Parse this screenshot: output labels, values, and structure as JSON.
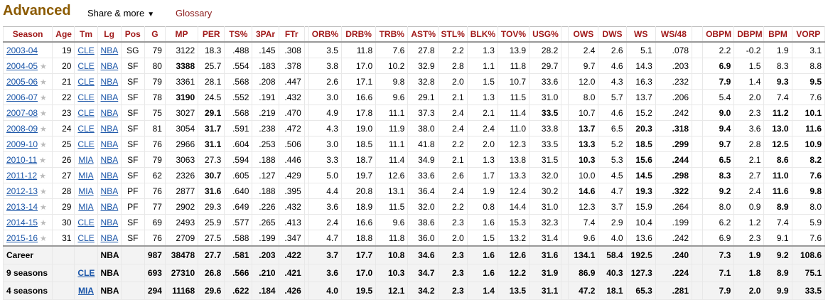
{
  "header": {
    "title": "Advanced",
    "share_label": "Share & more",
    "share_caret": "▼",
    "glossary_label": "Glossary"
  },
  "columns": [
    "Season",
    "Age",
    "Tm",
    "Lg",
    "Pos",
    "G",
    "MP",
    "PER",
    "TS%",
    "3PAr",
    "FTr",
    "",
    "ORB%",
    "DRB%",
    "TRB%",
    "AST%",
    "STL%",
    "BLK%",
    "TOV%",
    "USG%",
    "",
    "OWS",
    "DWS",
    "WS",
    "WS/48",
    "",
    "OBPM",
    "DBPM",
    "BPM",
    "VORP"
  ],
  "rows": [
    {
      "season": "2003-04",
      "star": false,
      "age": "19",
      "tm": "CLE",
      "lg": "NBA",
      "pos": "SG",
      "g": "79",
      "mp": "3122",
      "per": "18.3",
      "ts": ".488",
      "par": ".145",
      "ftr": ".308",
      "orb": "3.5",
      "drb": "11.8",
      "trb": "7.6",
      "ast": "27.8",
      "stl": "2.2",
      "blk": "1.3",
      "tov": "13.9",
      "usg": "28.2",
      "ows": "2.4",
      "dws": "2.6",
      "ws": "5.1",
      "ws48": ".078",
      "obpm": "2.2",
      "dbpm": "-0.2",
      "bpm": "1.9",
      "vorp": "3.1",
      "bold": []
    },
    {
      "season": "2004-05",
      "star": true,
      "age": "20",
      "tm": "CLE",
      "lg": "NBA",
      "pos": "SF",
      "g": "80",
      "mp": "3388",
      "per": "25.7",
      "ts": ".554",
      "par": ".183",
      "ftr": ".378",
      "orb": "3.8",
      "drb": "17.0",
      "trb": "10.2",
      "ast": "32.9",
      "stl": "2.8",
      "blk": "1.1",
      "tov": "11.8",
      "usg": "29.7",
      "ows": "9.7",
      "dws": "4.6",
      "ws": "14.3",
      "ws48": ".203",
      "obpm": "6.9",
      "dbpm": "1.5",
      "bpm": "8.3",
      "vorp": "8.8",
      "bold": [
        "mp",
        "obpm"
      ]
    },
    {
      "season": "2005-06",
      "star": true,
      "age": "21",
      "tm": "CLE",
      "lg": "NBA",
      "pos": "SF",
      "g": "79",
      "mp": "3361",
      "per": "28.1",
      "ts": ".568",
      "par": ".208",
      "ftr": ".447",
      "orb": "2.6",
      "drb": "17.1",
      "trb": "9.8",
      "ast": "32.8",
      "stl": "2.0",
      "blk": "1.5",
      "tov": "10.7",
      "usg": "33.6",
      "ows": "12.0",
      "dws": "4.3",
      "ws": "16.3",
      "ws48": ".232",
      "obpm": "7.9",
      "dbpm": "1.4",
      "bpm": "9.3",
      "vorp": "9.5",
      "bold": [
        "obpm",
        "bpm",
        "vorp"
      ]
    },
    {
      "season": "2006-07",
      "star": true,
      "age": "22",
      "tm": "CLE",
      "lg": "NBA",
      "pos": "SF",
      "g": "78",
      "mp": "3190",
      "per": "24.5",
      "ts": ".552",
      "par": ".191",
      "ftr": ".432",
      "orb": "3.0",
      "drb": "16.6",
      "trb": "9.6",
      "ast": "29.1",
      "stl": "2.1",
      "blk": "1.3",
      "tov": "11.5",
      "usg": "31.0",
      "ows": "8.0",
      "dws": "5.7",
      "ws": "13.7",
      "ws48": ".206",
      "obpm": "5.4",
      "dbpm": "2.0",
      "bpm": "7.4",
      "vorp": "7.6",
      "bold": [
        "mp"
      ]
    },
    {
      "season": "2007-08",
      "star": true,
      "age": "23",
      "tm": "CLE",
      "lg": "NBA",
      "pos": "SF",
      "g": "75",
      "mp": "3027",
      "per": "29.1",
      "ts": ".568",
      "par": ".219",
      "ftr": ".470",
      "orb": "4.9",
      "drb": "17.8",
      "trb": "11.1",
      "ast": "37.3",
      "stl": "2.4",
      "blk": "2.1",
      "tov": "11.4",
      "usg": "33.5",
      "ows": "10.7",
      "dws": "4.6",
      "ws": "15.2",
      "ws48": ".242",
      "obpm": "9.0",
      "dbpm": "2.3",
      "bpm": "11.2",
      "vorp": "10.1",
      "bold": [
        "per",
        "usg",
        "obpm",
        "bpm",
        "vorp"
      ]
    },
    {
      "season": "2008-09",
      "star": true,
      "age": "24",
      "tm": "CLE",
      "lg": "NBA",
      "pos": "SF",
      "g": "81",
      "mp": "3054",
      "per": "31.7",
      "ts": ".591",
      "par": ".238",
      "ftr": ".472",
      "orb": "4.3",
      "drb": "19.0",
      "trb": "11.9",
      "ast": "38.0",
      "stl": "2.4",
      "blk": "2.4",
      "tov": "11.0",
      "usg": "33.8",
      "ows": "13.7",
      "dws": "6.5",
      "ws": "20.3",
      "ws48": ".318",
      "obpm": "9.4",
      "dbpm": "3.6",
      "bpm": "13.0",
      "vorp": "11.6",
      "bold": [
        "per",
        "ows",
        "ws",
        "ws48",
        "obpm",
        "bpm",
        "vorp"
      ]
    },
    {
      "season": "2009-10",
      "star": true,
      "age": "25",
      "tm": "CLE",
      "lg": "NBA",
      "pos": "SF",
      "g": "76",
      "mp": "2966",
      "per": "31.1",
      "ts": ".604",
      "par": ".253",
      "ftr": ".506",
      "orb": "3.0",
      "drb": "18.5",
      "trb": "11.1",
      "ast": "41.8",
      "stl": "2.2",
      "blk": "2.0",
      "tov": "12.3",
      "usg": "33.5",
      "ows": "13.3",
      "dws": "5.2",
      "ws": "18.5",
      "ws48": ".299",
      "obpm": "9.7",
      "dbpm": "2.8",
      "bpm": "12.5",
      "vorp": "10.9",
      "bold": [
        "per",
        "ows",
        "ws",
        "ws48",
        "obpm",
        "bpm",
        "vorp"
      ]
    },
    {
      "season": "2010-11",
      "star": true,
      "age": "26",
      "tm": "MIA",
      "lg": "NBA",
      "pos": "SF",
      "g": "79",
      "mp": "3063",
      "per": "27.3",
      "ts": ".594",
      "par": ".188",
      "ftr": ".446",
      "orb": "3.3",
      "drb": "18.7",
      "trb": "11.4",
      "ast": "34.9",
      "stl": "2.1",
      "blk": "1.3",
      "tov": "13.8",
      "usg": "31.5",
      "ows": "10.3",
      "dws": "5.3",
      "ws": "15.6",
      "ws48": ".244",
      "obpm": "6.5",
      "dbpm": "2.1",
      "bpm": "8.6",
      "vorp": "8.2",
      "bold": [
        "ows",
        "ws",
        "ws48",
        "obpm",
        "bpm",
        "vorp"
      ]
    },
    {
      "season": "2011-12",
      "star": true,
      "age": "27",
      "tm": "MIA",
      "lg": "NBA",
      "pos": "SF",
      "g": "62",
      "mp": "2326",
      "per": "30.7",
      "ts": ".605",
      "par": ".127",
      "ftr": ".429",
      "orb": "5.0",
      "drb": "19.7",
      "trb": "12.6",
      "ast": "33.6",
      "stl": "2.6",
      "blk": "1.7",
      "tov": "13.3",
      "usg": "32.0",
      "ows": "10.0",
      "dws": "4.5",
      "ws": "14.5",
      "ws48": ".298",
      "obpm": "8.3",
      "dbpm": "2.7",
      "bpm": "11.0",
      "vorp": "7.6",
      "bold": [
        "per",
        "ws",
        "ws48",
        "obpm",
        "bpm",
        "vorp"
      ]
    },
    {
      "season": "2012-13",
      "star": true,
      "age": "28",
      "tm": "MIA",
      "lg": "NBA",
      "pos": "PF",
      "g": "76",
      "mp": "2877",
      "per": "31.6",
      "ts": ".640",
      "par": ".188",
      "ftr": ".395",
      "orb": "4.4",
      "drb": "20.8",
      "trb": "13.1",
      "ast": "36.4",
      "stl": "2.4",
      "blk": "1.9",
      "tov": "12.4",
      "usg": "30.2",
      "ows": "14.6",
      "dws": "4.7",
      "ws": "19.3",
      "ws48": ".322",
      "obpm": "9.2",
      "dbpm": "2.4",
      "bpm": "11.6",
      "vorp": "9.8",
      "bold": [
        "per",
        "ows",
        "ws",
        "ws48",
        "obpm",
        "bpm",
        "vorp"
      ]
    },
    {
      "season": "2013-14",
      "star": true,
      "age": "29",
      "tm": "MIA",
      "lg": "NBA",
      "pos": "PF",
      "g": "77",
      "mp": "2902",
      "per": "29.3",
      "ts": ".649",
      "par": ".226",
      "ftr": ".432",
      "orb": "3.6",
      "drb": "18.9",
      "trb": "11.5",
      "ast": "32.0",
      "stl": "2.2",
      "blk": "0.8",
      "tov": "14.4",
      "usg": "31.0",
      "ows": "12.3",
      "dws": "3.7",
      "ws": "15.9",
      "ws48": ".264",
      "obpm": "8.0",
      "dbpm": "0.9",
      "bpm": "8.9",
      "vorp": "8.0",
      "bold": [
        "bpm"
      ]
    },
    {
      "season": "2014-15",
      "star": true,
      "age": "30",
      "tm": "CLE",
      "lg": "NBA",
      "pos": "SF",
      "g": "69",
      "mp": "2493",
      "per": "25.9",
      "ts": ".577",
      "par": ".265",
      "ftr": ".413",
      "orb": "2.4",
      "drb": "16.6",
      "trb": "9.6",
      "ast": "38.6",
      "stl": "2.3",
      "blk": "1.6",
      "tov": "15.3",
      "usg": "32.3",
      "ows": "7.4",
      "dws": "2.9",
      "ws": "10.4",
      "ws48": ".199",
      "obpm": "6.2",
      "dbpm": "1.2",
      "bpm": "7.4",
      "vorp": "5.9",
      "bold": []
    },
    {
      "season": "2015-16",
      "star": true,
      "age": "31",
      "tm": "CLE",
      "lg": "NBA",
      "pos": "SF",
      "g": "76",
      "mp": "2709",
      "per": "27.5",
      "ts": ".588",
      "par": ".199",
      "ftr": ".347",
      "orb": "4.7",
      "drb": "18.8",
      "trb": "11.8",
      "ast": "36.0",
      "stl": "2.0",
      "blk": "1.5",
      "tov": "13.2",
      "usg": "31.4",
      "ows": "9.6",
      "dws": "4.0",
      "ws": "13.6",
      "ws48": ".242",
      "obpm": "6.9",
      "dbpm": "2.3",
      "bpm": "9.1",
      "vorp": "7.6",
      "bold": []
    }
  ],
  "footer": [
    {
      "label": "Career",
      "tm": "",
      "lg": "NBA",
      "g": "987",
      "mp": "38478",
      "per": "27.7",
      "ts": ".581",
      "par": ".203",
      "ftr": ".422",
      "orb": "3.7",
      "drb": "17.7",
      "trb": "10.8",
      "ast": "34.6",
      "stl": "2.3",
      "blk": "1.6",
      "tov": "12.6",
      "usg": "31.6",
      "ows": "134.1",
      "dws": "58.4",
      "ws": "192.5",
      "ws48": ".240",
      "obpm": "7.3",
      "dbpm": "1.9",
      "bpm": "9.2",
      "vorp": "108.6"
    },
    {
      "label": "9 seasons",
      "tm": "CLE",
      "lg": "NBA",
      "g": "693",
      "mp": "27310",
      "per": "26.8",
      "ts": ".566",
      "par": ".210",
      "ftr": ".421",
      "orb": "3.6",
      "drb": "17.0",
      "trb": "10.3",
      "ast": "34.7",
      "stl": "2.3",
      "blk": "1.6",
      "tov": "12.2",
      "usg": "31.9",
      "ows": "86.9",
      "dws": "40.3",
      "ws": "127.3",
      "ws48": ".224",
      "obpm": "7.1",
      "dbpm": "1.8",
      "bpm": "8.9",
      "vorp": "75.1"
    },
    {
      "label": "4 seasons",
      "tm": "MIA",
      "lg": "NBA",
      "g": "294",
      "mp": "11168",
      "per": "29.6",
      "ts": ".622",
      "par": ".184",
      "ftr": ".426",
      "orb": "4.0",
      "drb": "19.5",
      "trb": "12.1",
      "ast": "34.2",
      "stl": "2.3",
      "blk": "1.4",
      "tov": "13.5",
      "usg": "31.1",
      "ows": "47.2",
      "dws": "18.1",
      "ws": "65.3",
      "ws48": ".281",
      "obpm": "7.9",
      "dbpm": "2.0",
      "bpm": "9.9",
      "vorp": "33.5"
    }
  ],
  "star_glyph": "★"
}
